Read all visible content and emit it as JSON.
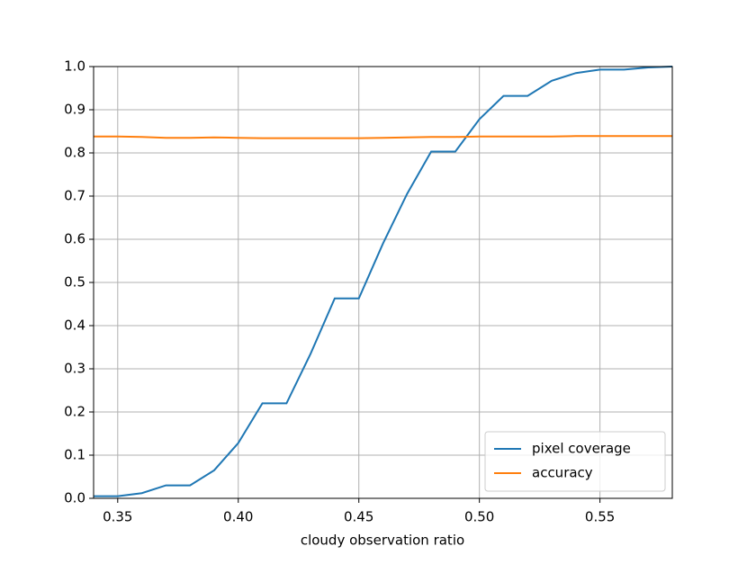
{
  "chart_data": {
    "type": "line",
    "xlabel": "cloudy observation ratio",
    "x": [
      0.34,
      0.35,
      0.36,
      0.37,
      0.38,
      0.39,
      0.4,
      0.41,
      0.42,
      0.43,
      0.44,
      0.45,
      0.46,
      0.47,
      0.48,
      0.49,
      0.5,
      0.51,
      0.52,
      0.53,
      0.54,
      0.55,
      0.56,
      0.57,
      0.58
    ],
    "series": [
      {
        "name": "pixel coverage",
        "color": "#1f77b4",
        "values": [
          0.005,
          0.005,
          0.012,
          0.03,
          0.03,
          0.065,
          0.128,
          0.22,
          0.22,
          0.335,
          0.463,
          0.463,
          0.59,
          0.705,
          0.803,
          0.803,
          0.878,
          0.932,
          0.932,
          0.967,
          0.985,
          0.993,
          0.993,
          0.998,
          1.0
        ]
      },
      {
        "name": "accuracy",
        "color": "#ff7f0e",
        "values": [
          0.838,
          0.838,
          0.837,
          0.835,
          0.835,
          0.836,
          0.835,
          0.834,
          0.834,
          0.834,
          0.834,
          0.834,
          0.835,
          0.836,
          0.837,
          0.837,
          0.838,
          0.838,
          0.838,
          0.838,
          0.839,
          0.839,
          0.839,
          0.839,
          0.839
        ]
      }
    ],
    "xlim": [
      0.34,
      0.58
    ],
    "xticks": [
      {
        "value": 0.35,
        "label": "0.35"
      },
      {
        "value": 0.4,
        "label": "0.40"
      },
      {
        "value": 0.45,
        "label": "0.45"
      },
      {
        "value": 0.5,
        "label": "0.50"
      },
      {
        "value": 0.55,
        "label": "0.55"
      }
    ],
    "ylim": [
      0,
      1
    ],
    "yticks": [
      {
        "value": 0,
        "label": "0.0"
      },
      0.1,
      0.2,
      0.3,
      0.4,
      0.5,
      0.6,
      0.7,
      0.8,
      0.9,
      {
        "value": 1,
        "label": "1.0"
      }
    ],
    "grid": true,
    "legend": "lower-right"
  }
}
